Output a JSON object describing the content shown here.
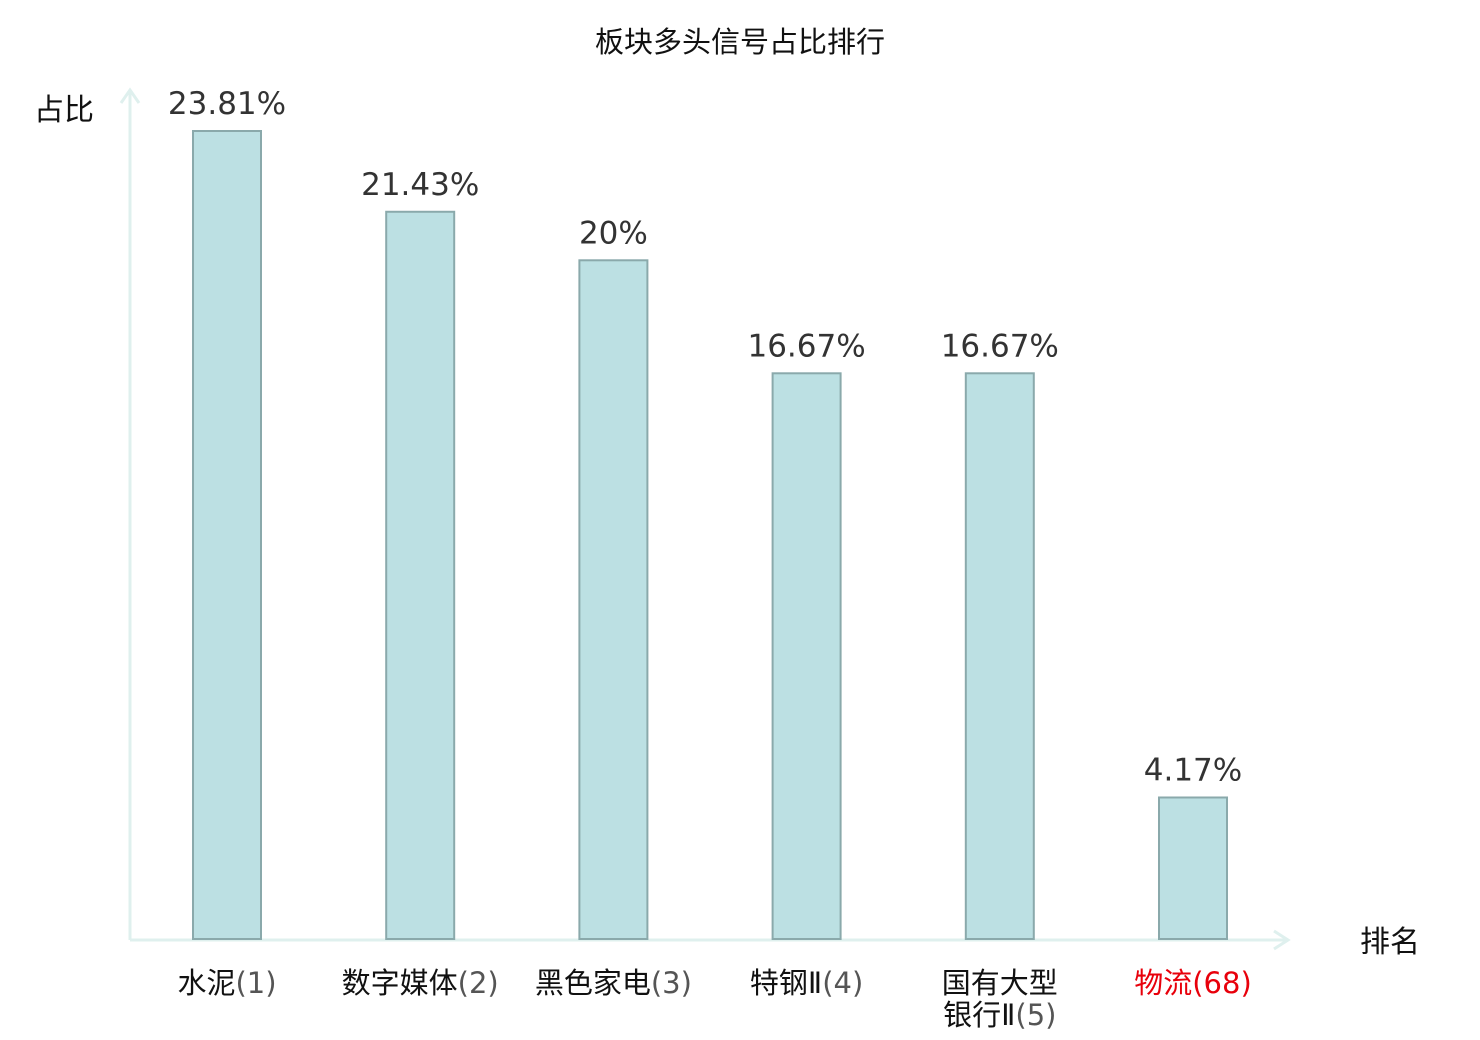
{
  "chart_data": {
    "type": "bar",
    "title": "板块多头信号占比排行",
    "ylabel": "占比",
    "xlabel": "排名",
    "ylim": [
      0,
      25
    ],
    "grid": false,
    "categories": [
      {
        "name": "水泥",
        "rank": "(1)"
      },
      {
        "name": "数字媒体",
        "rank": "(2)"
      },
      {
        "name": "黑色家电",
        "rank": "(3)"
      },
      {
        "name": "特钢Ⅱ",
        "rank": "(4)"
      },
      {
        "name": "国有大型银行Ⅱ",
        "rank": "(5)",
        "lines": [
          "国有大型",
          "银行Ⅱ"
        ]
      },
      {
        "name": "物流",
        "rank": "(68)",
        "highlight": true
      }
    ],
    "values": [
      23.81,
      21.43,
      20,
      16.67,
      16.67,
      4.17
    ],
    "value_labels": [
      "23.81%",
      "21.43%",
      "20%",
      "16.67%",
      "16.67%",
      "4.17%"
    ],
    "colors": {
      "bar_fill": "#bce0e3",
      "bar_stroke": "#8aa9ab",
      "axis": "#dff0ee",
      "highlight_text": "#e8000b"
    }
  }
}
